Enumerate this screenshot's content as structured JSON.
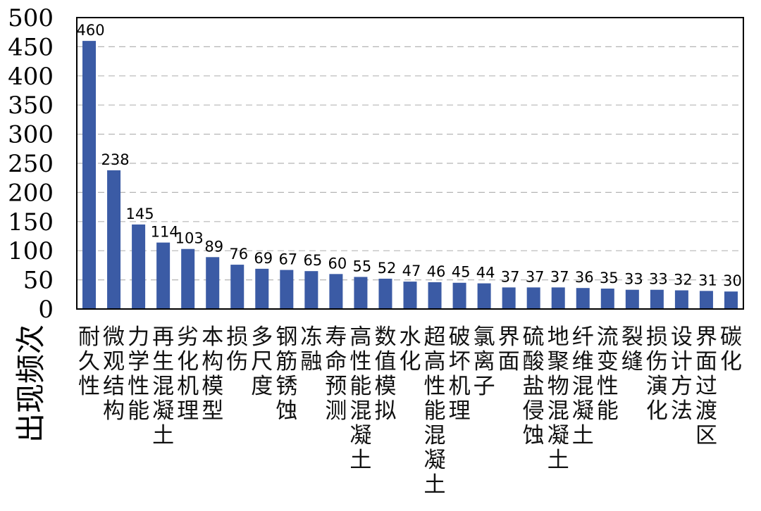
{
  "chart_data": {
    "type": "bar",
    "title": "",
    "xlabel": "",
    "ylabel": "出现频次",
    "ylim": [
      0,
      500
    ],
    "yticks": [
      0,
      50,
      100,
      150,
      200,
      250,
      300,
      350,
      400,
      450,
      500
    ],
    "grid": true,
    "bar_color": "#3B5BA5",
    "categories": [
      "耐久性",
      "微观结构",
      "力学性能",
      "再生混凝土",
      "劣化机理",
      "本构模型",
      "损伤",
      "多尺度",
      "钢筋锈蚀",
      "冻融",
      "寿命预测",
      "高性能混凝土",
      "数值模拟",
      "水化",
      "超高性能混凝土",
      "破坏机理",
      "氯离子",
      "界面",
      "硫酸盐侵蚀",
      "地聚物混凝土",
      "纤维混凝土",
      "流变性能",
      "裂缝",
      "损伤演化",
      "设计方法",
      "界面过渡区",
      "碳化"
    ],
    "values": [
      460,
      238,
      145,
      114,
      103,
      89,
      76,
      69,
      67,
      65,
      60,
      55,
      52,
      47,
      46,
      45,
      44,
      37,
      37,
      37,
      36,
      35,
      33,
      33,
      32,
      31,
      30
    ],
    "data_labels": [
      "460",
      "238",
      "145",
      "114",
      "103",
      "89",
      "76",
      "69",
      "67",
      "65",
      "60",
      "55",
      "52",
      "47",
      "46",
      "45",
      "44",
      "37",
      "37",
      "37",
      "36",
      "35",
      "33",
      "33",
      "32",
      "31",
      "30"
    ]
  }
}
